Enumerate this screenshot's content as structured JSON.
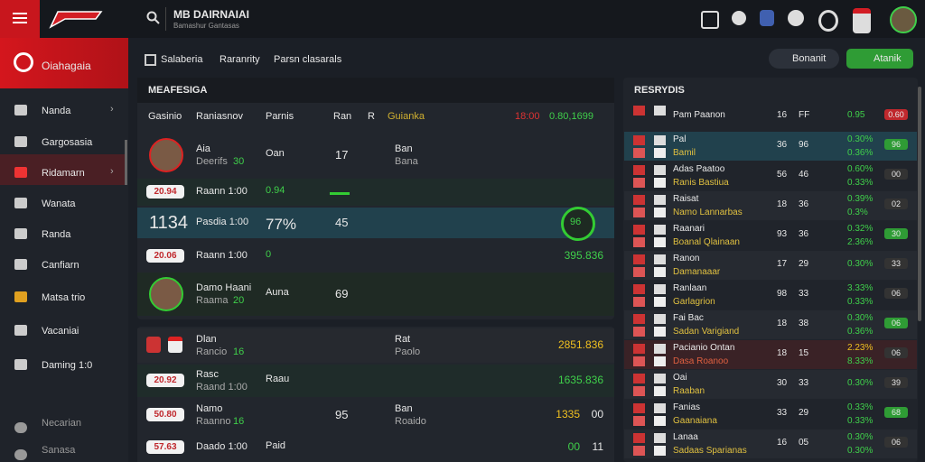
{
  "header": {
    "title": "MB DAIRNAIAI",
    "subtitle": "Bamashur Gantasas"
  },
  "sidebar": {
    "brand": "Oiahagaia",
    "items": [
      "Nanda",
      "Gargosasia",
      "Ridamarn",
      "Wanata",
      "Randa",
      "Canfiarn",
      "Matsa trio",
      "Vacaniai",
      "Daming 1:0"
    ],
    "footer": [
      "Necarian",
      "Sanasa"
    ]
  },
  "tabs": [
    "Salaberia",
    "Raranrity",
    "Parsn clasarals"
  ],
  "buttons": {
    "search": "Bonanit",
    "add": "Atanik"
  },
  "match_panel": {
    "title": "MEAFESIGA",
    "columns": [
      "Gasinio",
      "Raniasnov",
      "Parnis",
      "Ran",
      "R",
      "Guianka"
    ],
    "total_a": "18:00",
    "total_b": "0.80,1699",
    "rows": [
      {
        "name": "Aia",
        "sub": "Deerifs",
        "subval": "30",
        "mid": "Oan",
        "num": "17",
        "r1": "Ban",
        "r2": "Bana"
      },
      {
        "tag": "20.94",
        "name": "Raann 1:00",
        "mid": "0.94"
      },
      {
        "big": "1134",
        "name": "Pasdia 1:00",
        "mid": "77%",
        "num": "45",
        "badge": "96"
      },
      {
        "tag": "20.06",
        "name": "Raann 1:00",
        "mid": "0",
        "value": "395.836"
      },
      {
        "name": "Damo Haani",
        "sub": "Raama",
        "subval": "20",
        "mid": "Auna",
        "num": "69"
      }
    ]
  },
  "match_panel_2": {
    "rows": [
      {
        "name": "Dlan",
        "sub": "Rancio",
        "subval": "16",
        "r1": "Rat",
        "r2": "Paolo",
        "value": "2851.836"
      },
      {
        "tag": "20.92",
        "name": "Rasc",
        "sub": "Raand 1:00",
        "mid": "Raau",
        "value": "1635.836"
      },
      {
        "tag": "50.80",
        "name": "Namo",
        "sub": "Raanno",
        "subval": "16",
        "r1": "Ban",
        "r2": "Roaido",
        "num": "95",
        "value": "1335",
        "value2": "00"
      },
      {
        "tag": "57.63",
        "name": "Daado 1:00",
        "mid": "Paid",
        "value": "00",
        "value2": "11"
      }
    ]
  },
  "results_panel": {
    "title": "RESRYDIS",
    "rows": [
      {
        "name": "Pam Paanon",
        "n1": "16",
        "n2": "FF",
        "o1": "0.95",
        "badge": "0.60"
      },
      {
        "name": "Pal",
        "sub": "Bamil",
        "n1": "36",
        "n2": "96",
        "o1": "0.30%",
        "o2": "0.36%",
        "badge": "96"
      },
      {
        "name": "Adas Paatoo",
        "sub": "Ranis Bastiua",
        "n1": "56",
        "n2": "46",
        "o1": "0.60%",
        "o2": "0.33%",
        "badge": "00"
      },
      {
        "name": "Raisat",
        "sub": "Namo Lannarbas",
        "n1": "18",
        "n2": "36",
        "o1": "0.39%",
        "o2": "0.3%",
        "badge": "02"
      },
      {
        "name": "Raanari",
        "sub": "Boanal Qlainaan",
        "n1": "93",
        "n2": "36",
        "o1": "0.32%",
        "o2": "2.36%",
        "badge": "30"
      },
      {
        "name": "Ranon",
        "sub": "Damanaaar",
        "n1": "17",
        "n2": "29",
        "o1": "0.30%",
        "badge": "33"
      },
      {
        "name": "Ranlaan",
        "sub": "Garlagrion",
        "n1": "98",
        "n2": "33",
        "o1": "3.33%",
        "o2": "0.33%",
        "badge": "06"
      },
      {
        "name": "Fai Bac",
        "sub": "Sadan Varigiand",
        "n1": "18",
        "n2": "38",
        "o1": "0.30%",
        "o2": "0.36%",
        "badge": "06"
      },
      {
        "name": "Pacianio Ontan",
        "sub": "Dasa Roanoo",
        "n1": "18",
        "n2": "15",
        "o1": "2.23%",
        "o2": "8.33%",
        "badge": "06"
      },
      {
        "name": "Oai",
        "sub": "Raaban",
        "n1": "30",
        "n2": "33",
        "o1": "0.30%",
        "badge": "39"
      },
      {
        "name": "Fanias",
        "sub": "Gaanaiana",
        "n1": "33",
        "n2": "29",
        "o1": "0.33%",
        "o2": "0.33%",
        "badge": "68"
      },
      {
        "name": "Lanaa",
        "sub": "Sadaas Sparianas",
        "n1": "16",
        "n2": "05",
        "o1": "0.30%",
        "o2": "0.30%",
        "badge": "06"
      }
    ]
  }
}
